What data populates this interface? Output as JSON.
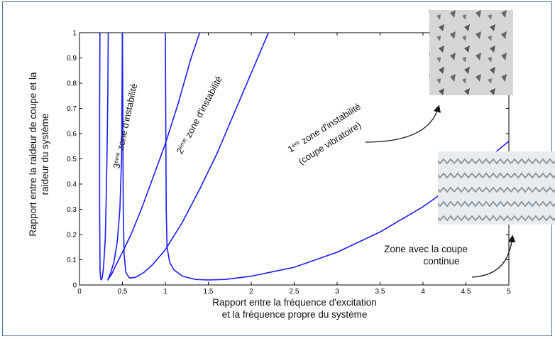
{
  "chart_data": {
    "type": "line",
    "xlim": [
      0,
      5
    ],
    "ylim": [
      0,
      1
    ],
    "xticks": [
      "0",
      "0.5",
      "1",
      "1.5",
      "2",
      "2.5",
      "3",
      "3.5",
      "4",
      "4.5",
      "5"
    ],
    "yticks": [
      "0",
      "0.1",
      "0.2",
      "0.3",
      "0.4",
      "0.5",
      "0.6",
      "0.7",
      "0.8",
      "0.9",
      "1"
    ],
    "xlabel_line1": "Rapport entre la fréquence d'excitation",
    "xlabel_line2": "et la fréquence propre du système",
    "ylabel_line1": "Rapport entre la raideur de coupe et la",
    "ylabel_line2": "raideur du système",
    "line_color": "#1a1aff",
    "series": [
      {
        "x": [
          1.0,
          1.01,
          1.02,
          1.05,
          1.1,
          1.2,
          1.35,
          1.5,
          1.7,
          2.0,
          2.5,
          3.0,
          3.5,
          4.0,
          4.5,
          5.0
        ],
        "y": [
          1.0,
          0.3,
          0.15,
          0.09,
          0.06,
          0.035,
          0.022,
          0.02,
          0.022,
          0.035,
          0.07,
          0.13,
          0.21,
          0.31,
          0.43,
          0.57
        ]
      },
      {
        "x": [
          0.5,
          0.51,
          0.52,
          0.54,
          0.58,
          0.65,
          0.75,
          0.85,
          1.0,
          1.2,
          1.4,
          1.6,
          1.8,
          2.0,
          2.2
        ],
        "y": [
          1.0,
          0.3,
          0.12,
          0.05,
          0.028,
          0.03,
          0.05,
          0.08,
          0.14,
          0.25,
          0.38,
          0.52,
          0.68,
          0.84,
          1.0
        ]
      },
      {
        "x": [
          0.5,
          0.49,
          0.47,
          0.44,
          0.4,
          0.36,
          0.335,
          0.33,
          0.34,
          0.37,
          0.42,
          0.5,
          0.6,
          0.72,
          0.85,
          1.0,
          1.15,
          1.3,
          1.4
        ],
        "y": [
          1.0,
          0.5,
          0.3,
          0.17,
          0.09,
          0.045,
          0.025,
          0.02,
          0.025,
          0.04,
          0.075,
          0.13,
          0.2,
          0.3,
          0.42,
          0.56,
          0.72,
          0.9,
          1.0
        ]
      },
      {
        "x": [
          0.335,
          0.33,
          0.32,
          0.31,
          0.3,
          0.28,
          0.265,
          0.255,
          0.25
        ],
        "y": [
          1.0,
          0.75,
          0.5,
          0.32,
          0.18,
          0.07,
          0.03,
          0.02,
          0.02
        ]
      },
      {
        "x": [
          0.25,
          0.24,
          0.235,
          0.235,
          0.238
        ],
        "y": [
          0.02,
          0.05,
          0.3,
          0.7,
          1.0
        ]
      }
    ],
    "annotations": [
      {
        "sup": "ère",
        "pre": "1",
        "text": " zone d'instabilité",
        "sub": "(coupe vibratoire)"
      },
      {
        "sup": "ème",
        "pre": "2",
        "text": " zone d'instabilité"
      },
      {
        "sup": "ème",
        "pre": "3",
        "text": " zone d'instabilité"
      },
      {
        "line1": "Zone avec la coupe",
        "line2": "continue"
      }
    ]
  }
}
